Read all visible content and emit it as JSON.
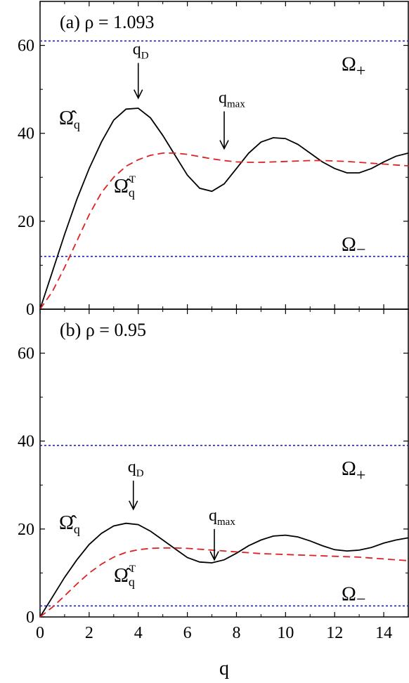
{
  "chart_data": [
    {
      "type": "line",
      "panel_label": "(a) ρ = 1.093",
      "xlabel": "",
      "ylabel": "",
      "xlim": [
        0,
        15
      ],
      "ylim": [
        0,
        70
      ],
      "yticks": [
        0,
        20,
        40,
        60
      ],
      "xticks": [],
      "horizontal_lines": [
        {
          "name": "Ω+",
          "y": 61,
          "color": "#2222cc",
          "style": "dotted"
        },
        {
          "name": "Ω−",
          "y": 12,
          "color": "#2222cc",
          "style": "dotted"
        }
      ],
      "series": [
        {
          "name": "Ω̂q",
          "color": "#000000",
          "style": "solid",
          "x": [
            0,
            0.5,
            1,
            1.5,
            2,
            2.5,
            3,
            3.5,
            4,
            4.5,
            5,
            5.5,
            6,
            6.5,
            7,
            7.5,
            8,
            8.5,
            9,
            9.5,
            10,
            10.5,
            11,
            11.5,
            12,
            12.5,
            13,
            13.5,
            14,
            14.5,
            15
          ],
          "y": [
            0,
            8.5,
            17,
            25,
            32,
            38,
            43,
            45.5,
            45.7,
            43.5,
            39.5,
            35,
            30.5,
            27.5,
            26.8,
            28.5,
            32,
            35.5,
            38,
            39,
            38.8,
            37.5,
            35.5,
            33.5,
            32,
            31,
            31,
            32,
            33.5,
            34.8,
            35.5
          ]
        },
        {
          "name": "Ω̂qT",
          "color": "#dd2222",
          "style": "dashed",
          "x": [
            0,
            0.5,
            1,
            1.5,
            2,
            2.5,
            3,
            3.5,
            4,
            4.5,
            5,
            5.5,
            6,
            6.5,
            7,
            7.5,
            8,
            8.5,
            9,
            9.5,
            10,
            10.5,
            11,
            11.5,
            12,
            12.5,
            13,
            13.5,
            14,
            14.5,
            15
          ],
          "y": [
            0,
            4,
            9.5,
            15.5,
            21.5,
            26.5,
            30,
            32.5,
            34,
            35,
            35.5,
            35.5,
            35.2,
            34.7,
            34.2,
            33.8,
            33.5,
            33.4,
            33.4,
            33.5,
            33.6,
            33.7,
            33.8,
            33.8,
            33.7,
            33.6,
            33.4,
            33.2,
            33,
            32.8,
            32.6
          ]
        }
      ],
      "annotations": [
        {
          "text": "q",
          "sub": "D",
          "arrow_x": 4,
          "arrow_y_top": 56,
          "arrow_y_bottom": 48
        },
        {
          "text": "q",
          "sub": "max",
          "arrow_x": 7.5,
          "arrow_y_top": 45,
          "arrow_y_bottom": 36.5
        }
      ],
      "labels": {
        "omega_plus": "Ω",
        "omega_plus_sub": "+",
        "omega_minus": "Ω",
        "omega_minus_sub": "−",
        "omega_hat": "Ω̂",
        "omega_hat_sub": "q",
        "omega_hat_t": "Ω̂",
        "omega_hat_t_sub": "q",
        "omega_hat_t_sup": "T"
      }
    },
    {
      "type": "line",
      "panel_label": "(b) ρ = 0.95",
      "xlabel": "q",
      "ylabel": "",
      "xlim": [
        0,
        15
      ],
      "ylim": [
        0,
        70
      ],
      "yticks": [
        0,
        20,
        40,
        60
      ],
      "xticks": [
        0,
        2,
        4,
        6,
        8,
        10,
        12,
        14
      ],
      "horizontal_lines": [
        {
          "name": "Ω+",
          "y": 39,
          "color": "#2222cc",
          "style": "dotted"
        },
        {
          "name": "Ω−",
          "y": 2.5,
          "color": "#2222cc",
          "style": "dotted"
        }
      ],
      "series": [
        {
          "name": "Ω̂q",
          "color": "#000000",
          "style": "solid",
          "x": [
            0,
            0.5,
            1,
            1.5,
            2,
            2.5,
            3,
            3.5,
            4,
            4.5,
            5,
            5.5,
            6,
            6.5,
            7,
            7.5,
            8,
            8.5,
            9,
            9.5,
            10,
            10.5,
            11,
            11.5,
            12,
            12.5,
            13,
            13.5,
            14,
            14.5,
            15
          ],
          "y": [
            0,
            4.5,
            9,
            13,
            16.5,
            19,
            20.7,
            21.3,
            21,
            19.5,
            17.5,
            15.5,
            13.5,
            12.5,
            12.3,
            13,
            14.5,
            16.2,
            17.5,
            18.4,
            18.6,
            18.2,
            17.3,
            16.2,
            15.3,
            15,
            15.2,
            15.8,
            16.8,
            17.5,
            18
          ]
        },
        {
          "name": "Ω̂qT",
          "color": "#dd2222",
          "style": "dashed",
          "x": [
            0,
            0.5,
            1,
            1.5,
            2,
            2.5,
            3,
            3.5,
            4,
            4.5,
            5,
            5.5,
            6,
            6.5,
            7,
            7.5,
            8,
            8.5,
            9,
            9.5,
            10,
            10.5,
            11,
            11.5,
            12,
            12.5,
            13,
            13.5,
            14,
            14.5,
            15
          ],
          "y": [
            0,
            2.2,
            4.8,
            7.5,
            10,
            12,
            13.6,
            14.7,
            15.3,
            15.6,
            15.7,
            15.7,
            15.6,
            15.4,
            15.2,
            15,
            14.8,
            14.6,
            14.4,
            14.3,
            14.2,
            14.1,
            14,
            13.9,
            13.8,
            13.7,
            13.6,
            13.4,
            13.2,
            13,
            12.8
          ]
        }
      ],
      "annotations": [
        {
          "text": "q",
          "sub": "D",
          "arrow_x": 3.8,
          "arrow_y_top": 31,
          "arrow_y_bottom": 24.5
        },
        {
          "text": "q",
          "sub": "max",
          "arrow_x": 7.1,
          "arrow_y_top": 20,
          "arrow_y_bottom": 13
        }
      ],
      "labels": {
        "omega_plus": "Ω",
        "omega_plus_sub": "+",
        "omega_minus": "Ω",
        "omega_minus_sub": "−",
        "omega_hat": "Ω̂",
        "omega_hat_sub": "q",
        "omega_hat_t": "Ω̂",
        "omega_hat_t_sub": "q",
        "omega_hat_t_sup": "T"
      }
    }
  ]
}
